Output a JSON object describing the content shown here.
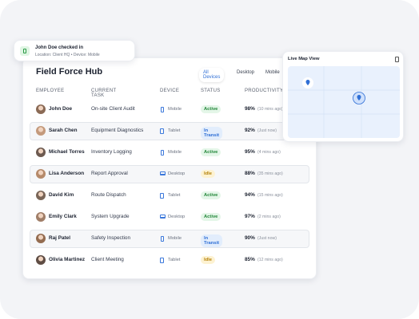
{
  "notification": {
    "title": "John Doe checked in",
    "subtitle": "Location: Client HQ • Device: Mobile"
  },
  "header": {
    "title": "Field Force Hub",
    "tabs": [
      "All Devices",
      "Desktop",
      "Mobile"
    ]
  },
  "table": {
    "columns": [
      "EMPLOYEE",
      "CURRENT TASK",
      "DEVICE",
      "STATUS",
      "PRODUCTIVITY"
    ],
    "rows": [
      [
        "John Doe",
        "On-site Client Audit",
        "Mobile",
        "Active",
        "98%",
        "(10 mins ago)"
      ],
      [
        "Sarah Chen",
        "Equipment Diagnostics",
        "Tablet",
        "In Transit",
        "92%",
        "(Just now)"
      ],
      [
        "Michael Torres",
        "Inventory Logging",
        "Mobile",
        "Active",
        "95%",
        "(4 mins ago)"
      ],
      [
        "Lisa Anderson",
        "Report Approval",
        "Desktop",
        "Idle",
        "88%",
        "(35 mins ago)"
      ],
      [
        "David Kim",
        "Route Dispatch",
        "Tablet",
        "Active",
        "94%",
        "(15 mins ago)"
      ],
      [
        "Emily Clark",
        "System Upgrade",
        "Desktop",
        "Active",
        "97%",
        "(2 mins ago)"
      ],
      [
        "Raj Patel",
        "Safety Inspection",
        "Mobile",
        "In Transit",
        "90%",
        "(Just now)"
      ],
      [
        "Olivia Martinez",
        "Client Meeting",
        "Tablet",
        "Idle",
        "85%",
        "(12 mins ago)"
      ]
    ]
  },
  "map": {
    "title": "Live Map View"
  }
}
